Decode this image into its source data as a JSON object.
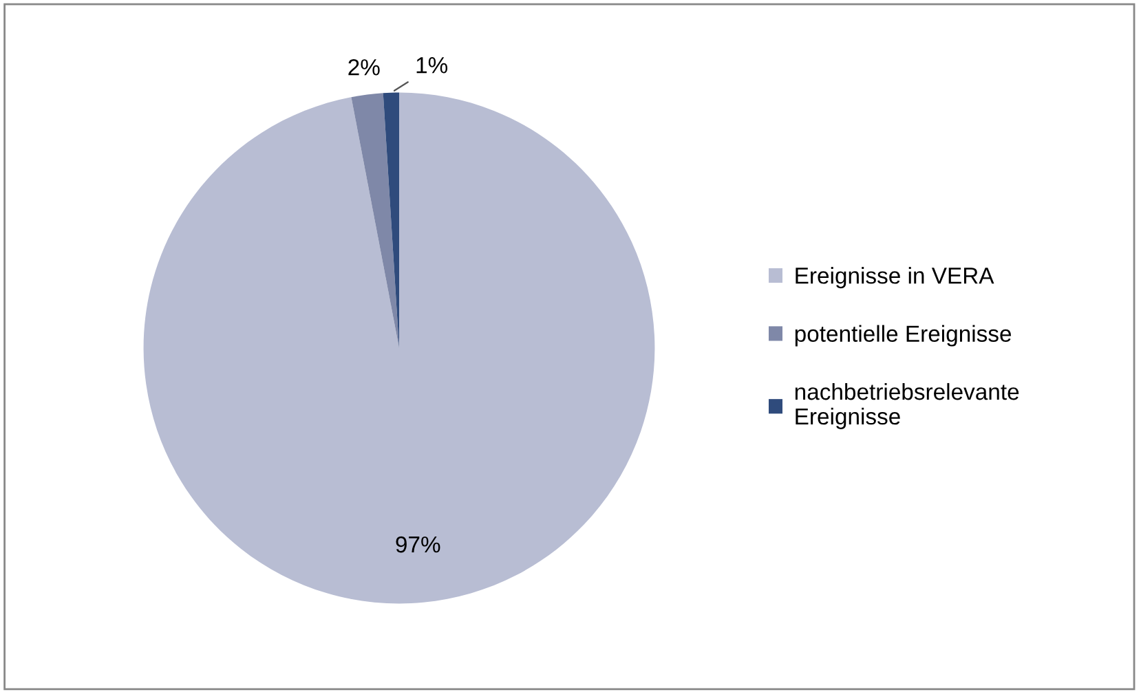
{
  "chart_data": {
    "type": "pie",
    "categories": [
      "Ereignisse in VERA",
      "potentielle Ereignisse",
      "nachbetriebsrelevante Ereignisse"
    ],
    "values": [
      97,
      2,
      1
    ],
    "colors": [
      "#b8bdd3",
      "#7f88a8",
      "#2f4b7c"
    ],
    "value_labels": [
      "97%",
      "2%",
      "1%"
    ],
    "legend": "right"
  }
}
